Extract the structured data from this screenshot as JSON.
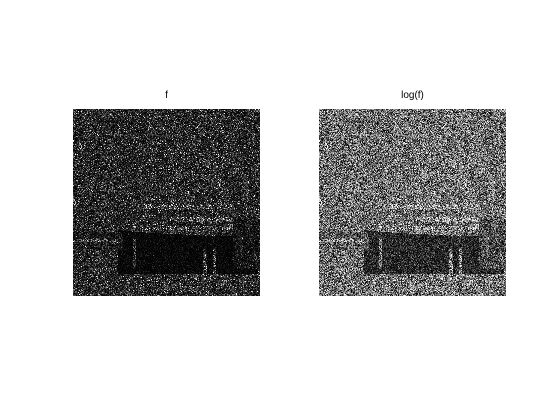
{
  "figure": {
    "panels": [
      {
        "title": "f",
        "display": "linear"
      },
      {
        "title": "log(f)",
        "display": "log"
      }
    ]
  }
}
